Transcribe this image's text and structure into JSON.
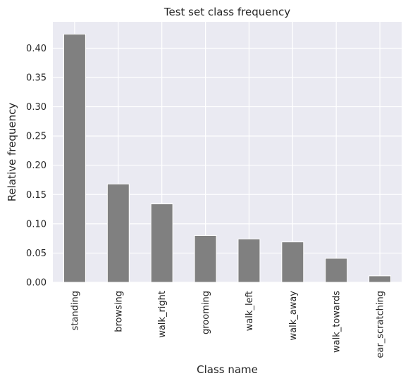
{
  "chart_data": {
    "type": "bar",
    "title": "Test set class frequency",
    "xlabel": "Class name",
    "ylabel": "Relative frequency",
    "categories": [
      "standing",
      "browsing",
      "walk_right",
      "grooming",
      "walk_left",
      "walk_away",
      "walk_towards",
      "ear_scratching"
    ],
    "values": [
      0.424,
      0.168,
      0.134,
      0.08,
      0.074,
      0.069,
      0.041,
      0.011
    ],
    "ylim": [
      0,
      0.445
    ],
    "yticks": [
      "0.00",
      "0.05",
      "0.10",
      "0.15",
      "0.20",
      "0.25",
      "0.30",
      "0.35",
      "0.40"
    ],
    "grid": true,
    "colors": {
      "bar": "#808080",
      "background": "#eaeaf2",
      "grid": "#ffffff"
    }
  }
}
